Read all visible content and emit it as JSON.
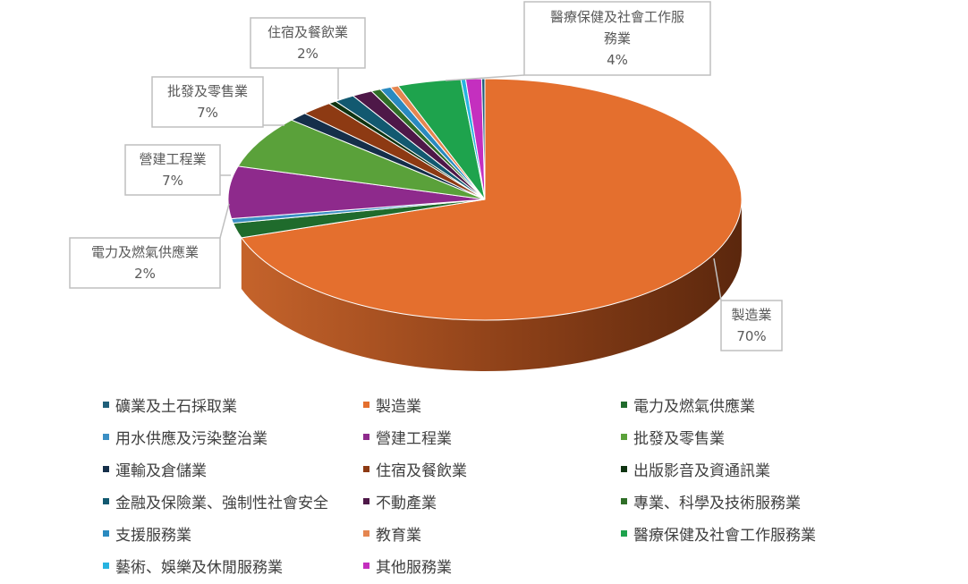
{
  "chart_data": {
    "type": "pie",
    "categories": [
      "礦業及土石採取業",
      "製造業",
      "電力及燃氣供應業",
      "用水供應及污染整治業",
      "營建工程業",
      "批發及零售業",
      "運輸及倉儲業",
      "住宿及餐飲業",
      "出版影音及資通訊業",
      "金融及保險業、強制性社會安全",
      "不動產業",
      "專業、科學及技術服務業",
      "支援服務業",
      "教育業",
      "醫療保健及社會工作服務業",
      "藝術、娛樂及休閒服務業",
      "其他服務業"
    ],
    "values": [
      0.2,
      70,
      2,
      0.6,
      7,
      7,
      1.2,
      2,
      0.5,
      1.3,
      1.3,
      0.6,
      0.7,
      0.5,
      4,
      0.3,
      1
    ],
    "colors": [
      "#1f5f7a",
      "#e46f2e",
      "#1f6b2c",
      "#3b8fc4",
      "#8e2a8c",
      "#5aa13a",
      "#152f4a",
      "#8d3a13",
      "#0f3412",
      "#125970",
      "#4e1848",
      "#2f6e27",
      "#2a8ac0",
      "#e58650",
      "#1ea34d",
      "#27b3e0",
      "#c42fbf"
    ],
    "labels": [
      {
        "name": "製造業",
        "value": "70%"
      },
      {
        "name": "電力及燃氣供應業",
        "value": "2%"
      },
      {
        "name": "營建工程業",
        "value": "7%"
      },
      {
        "name": "批發及零售業",
        "value": "7%"
      },
      {
        "name": "住宿及餐飲業",
        "value": "2%"
      },
      {
        "name": "醫療保健及社會工作服",
        "name2": "務業",
        "value": "4%"
      }
    ],
    "legend_position": "bottom",
    "style": "3d"
  },
  "legend": [
    "礦業及土石採取業",
    "製造業",
    "電力及燃氣供應業",
    "用水供應及污染整治業",
    "營建工程業",
    "批發及零售業",
    "運輸及倉儲業",
    "住宿及餐飲業",
    "出版影音及資通訊業",
    "金融及保險業、強制性社會安全",
    "不動產業",
    "專業、科學及技術服務業",
    "支援服務業",
    "教育業",
    "醫療保健及社會工作服務業",
    "藝術、娛樂及休閒服務業",
    "其他服務業"
  ]
}
